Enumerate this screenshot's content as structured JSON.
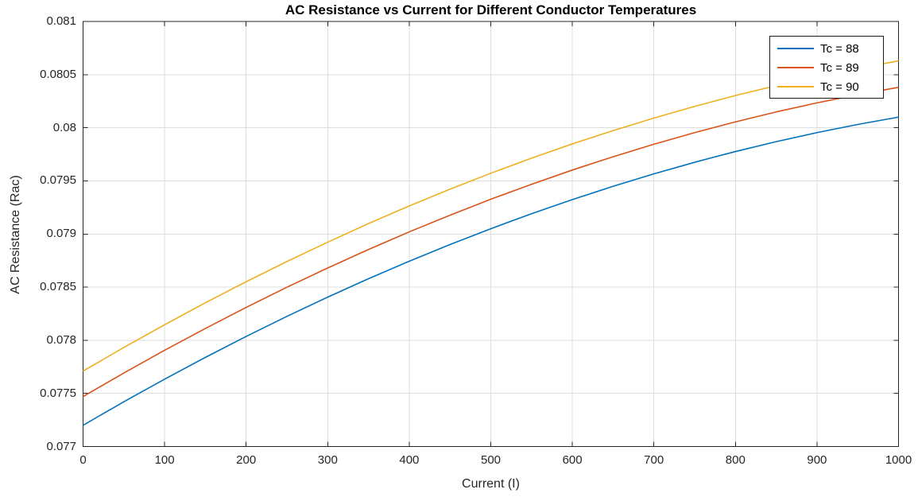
{
  "chart_data": {
    "type": "line",
    "title": "AC Resistance vs Current for Different Conductor Temperatures",
    "xlabel": "Current (I)",
    "ylabel": "AC Resistance (Rac)",
    "xlim": [
      0,
      1000
    ],
    "ylim": [
      0.077,
      0.081
    ],
    "grid": true,
    "box": true,
    "legend_position": "northeast",
    "xticks": [
      {
        "value": 0,
        "label": "0"
      },
      {
        "value": 100,
        "label": "100"
      },
      {
        "value": 200,
        "label": "200"
      },
      {
        "value": 300,
        "label": "300"
      },
      {
        "value": 400,
        "label": "400"
      },
      {
        "value": 500,
        "label": "500"
      },
      {
        "value": 600,
        "label": "600"
      },
      {
        "value": 700,
        "label": "700"
      },
      {
        "value": 800,
        "label": "800"
      },
      {
        "value": 900,
        "label": "900"
      },
      {
        "value": 1000,
        "label": "1000"
      }
    ],
    "yticks": [
      {
        "value": 0.077,
        "label": "0.077"
      },
      {
        "value": 0.0775,
        "label": "0.0775"
      },
      {
        "value": 0.078,
        "label": "0.078"
      },
      {
        "value": 0.0785,
        "label": "0.0785"
      },
      {
        "value": 0.079,
        "label": "0.079"
      },
      {
        "value": 0.0795,
        "label": "0.0795"
      },
      {
        "value": 0.08,
        "label": "0.08"
      },
      {
        "value": 0.0805,
        "label": "0.0805"
      },
      {
        "value": 0.081,
        "label": "0.081"
      }
    ],
    "x": [
      0,
      50,
      100,
      150,
      200,
      250,
      300,
      350,
      400,
      450,
      500,
      550,
      600,
      650,
      700,
      750,
      800,
      850,
      900,
      950,
      1000
    ],
    "series": [
      {
        "name": "Tc = 88",
        "color": "#0072BD",
        "values": [
          0.0772,
          0.077421,
          0.077634,
          0.077839,
          0.078036,
          0.078225,
          0.078406,
          0.078579,
          0.078744,
          0.078901,
          0.07905,
          0.079191,
          0.079324,
          0.079449,
          0.079566,
          0.079675,
          0.079776,
          0.079869,
          0.079954,
          0.080031,
          0.0801
        ]
      },
      {
        "name": "Tc = 89",
        "color": "#D95319",
        "values": [
          0.07747,
          0.077692,
          0.077906,
          0.078111,
          0.078309,
          0.078499,
          0.07868,
          0.078854,
          0.07902,
          0.079177,
          0.079327,
          0.079468,
          0.079602,
          0.079727,
          0.079845,
          0.079954,
          0.080055,
          0.080149,
          0.080234,
          0.080311,
          0.08038
        ]
      },
      {
        "name": "Tc = 90",
        "color": "#EDB120",
        "values": [
          0.07771,
          0.077932,
          0.078146,
          0.078353,
          0.078551,
          0.078741,
          0.078923,
          0.079098,
          0.079264,
          0.079422,
          0.079572,
          0.079714,
          0.079848,
          0.079973,
          0.080091,
          0.080201,
          0.080303,
          0.080396,
          0.080482,
          0.080559,
          0.080629
        ]
      }
    ],
    "colors": {
      "axis": "#262626",
      "grid": "#dedede",
      "background": "#ffffff",
      "tick_text": "#262626",
      "title_text": "#000000"
    }
  }
}
